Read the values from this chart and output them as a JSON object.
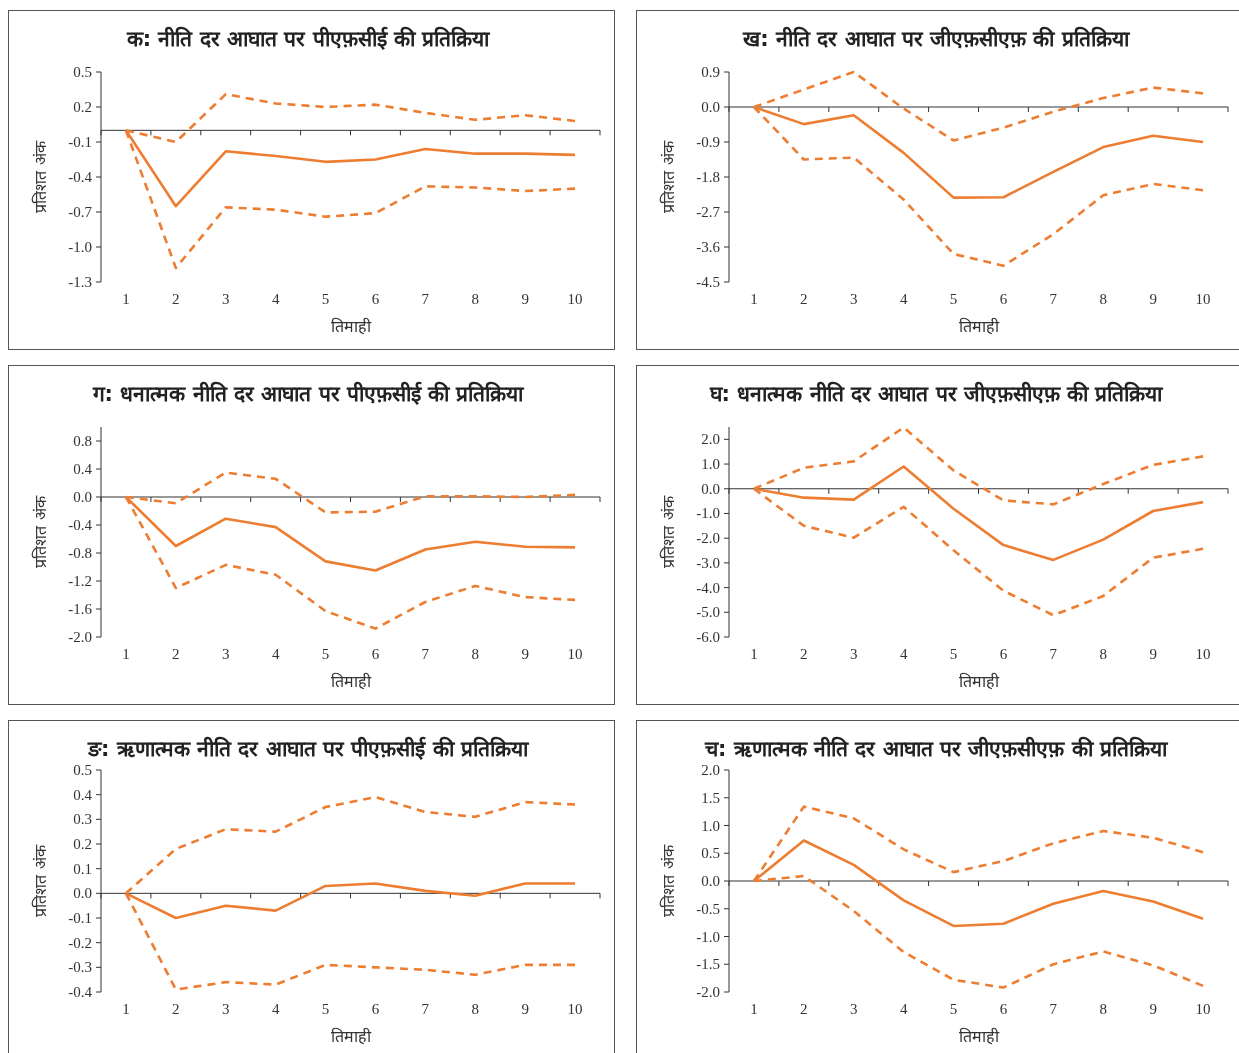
{
  "chart_data": [
    {
      "type": "line",
      "title": "क: नीति  दर आघात पर पीएफ़सीई की प्रतिक्रिया",
      "xlabel": "तिमाही",
      "ylabel": "प्रतिशत अंक",
      "categories": [
        "1",
        "2",
        "3",
        "4",
        "5",
        "6",
        "7",
        "8",
        "9",
        "10"
      ],
      "ylim": [
        -1.3,
        0.5
      ],
      "yticks": [
        0.5,
        0.2,
        -0.1,
        -0.4,
        -0.7,
        {
          "value": -1.0,
          "label": "-1.0"
        },
        -1.3
      ],
      "series": [
        {
          "color": "#ed7d31",
          "line_style": "solid",
          "values": [
            0,
            -0.65,
            -0.18,
            -0.22,
            -0.27,
            -0.25,
            -0.16,
            -0.2,
            -0.2,
            -0.21
          ]
        },
        {
          "color": "#ed7d31",
          "line_style": "dashed",
          "values": [
            0,
            -0.1,
            0.31,
            0.23,
            0.2,
            0.22,
            0.15,
            0.09,
            0.13,
            0.08
          ]
        },
        {
          "color": "#ed7d31",
          "line_style": "dashed",
          "values": [
            0,
            -1.18,
            -0.66,
            -0.68,
            -0.74,
            -0.71,
            -0.48,
            -0.49,
            -0.52,
            -0.5
          ]
        }
      ]
    },
    {
      "type": "line",
      "title": "ख: नीति  दर आघात पर जीएफ़सीएफ़ की प्रतिक्रिया",
      "xlabel": "तिमाही",
      "ylabel": "प्रतिशत अंक",
      "categories": [
        "1",
        "2",
        "3",
        "4",
        "5",
        "6",
        "7",
        "8",
        "9",
        "10"
      ],
      "ylim": [
        -4.5,
        0.9
      ],
      "yticks": [
        0.9,
        {
          "value": 0,
          "label": "0.0"
        },
        -0.9,
        -1.8,
        -2.7,
        -3.6,
        -4.5
      ],
      "series": [
        {
          "color": "#ed7d31",
          "line_style": "solid",
          "values": [
            0,
            -0.44,
            -0.21,
            -1.18,
            -2.33,
            -2.32,
            -1.67,
            -1.03,
            -0.74,
            -0.9
          ]
        },
        {
          "color": "#ed7d31",
          "line_style": "dashed",
          "values": [
            0,
            0.45,
            0.9,
            -0.04,
            -0.86,
            -0.53,
            -0.12,
            0.23,
            0.5,
            0.35
          ]
        },
        {
          "color": "#ed7d31",
          "line_style": "dashed",
          "values": [
            0,
            -1.35,
            -1.3,
            -2.38,
            -3.78,
            -4.08,
            -3.27,
            -2.27,
            -1.98,
            -2.14
          ]
        }
      ]
    },
    {
      "type": "line",
      "title": "ग: धनात्मक नीति  दर आघात पर पीएफ़सीई की प्रतिक्रिया",
      "xlabel": "तिमाही",
      "ylabel": "प्रतिशत अंक",
      "categories": [
        "1",
        "2",
        "3",
        "4",
        "5",
        "6",
        "7",
        "8",
        "9",
        "10"
      ],
      "ylim": [
        -2.0,
        1.0
      ],
      "yticks": [
        0.8,
        0.4,
        {
          "value": 0,
          "label": "0.0"
        },
        -0.4,
        -0.8,
        -1.2,
        -1.6,
        {
          "value": -2.0,
          "label": "-2.0"
        }
      ],
      "series": [
        {
          "color": "#ed7d31",
          "line_style": "solid",
          "values": [
            0,
            -0.7,
            -0.31,
            -0.43,
            -0.92,
            -1.05,
            -0.75,
            -0.64,
            -0.71,
            -0.72
          ]
        },
        {
          "color": "#ed7d31",
          "line_style": "dashed",
          "values": [
            0,
            -0.09,
            0.35,
            0.26,
            -0.22,
            -0.21,
            0.01,
            0.01,
            0.0,
            0.03
          ]
        },
        {
          "color": "#ed7d31",
          "line_style": "dashed",
          "values": [
            0,
            -1.3,
            -0.97,
            -1.11,
            -1.63,
            -1.88,
            -1.5,
            -1.27,
            -1.43,
            -1.47
          ]
        }
      ]
    },
    {
      "type": "line",
      "title": "घ: धनात्मक नीति  दर आघात पर जीएफ़सीएफ़ की प्रतिक्रिया",
      "xlabel": "तिमाही",
      "ylabel": "प्रतिशत अंक",
      "categories": [
        "1",
        "2",
        "3",
        "4",
        "5",
        "6",
        "7",
        "8",
        "9",
        "10"
      ],
      "ylim": [
        -6.0,
        2.5
      ],
      "yticks": [
        {
          "value": 2.0,
          "label": "2.0"
        },
        {
          "value": 1.0,
          "label": "1.0"
        },
        {
          "value": 0,
          "label": "0.0"
        },
        {
          "value": -1.0,
          "label": "-1.0"
        },
        {
          "value": -2.0,
          "label": "-2.0"
        },
        {
          "value": -3.0,
          "label": "-3.0"
        },
        {
          "value": -4.0,
          "label": "-4.0"
        },
        {
          "value": -5.0,
          "label": "-5.0"
        },
        {
          "value": -6.0,
          "label": "-6.0"
        }
      ],
      "series": [
        {
          "color": "#ed7d31",
          "line_style": "solid",
          "values": [
            0,
            -0.36,
            -0.44,
            0.9,
            -0.81,
            -2.28,
            -2.88,
            -2.06,
            -0.9,
            -0.54
          ]
        },
        {
          "color": "#ed7d31",
          "line_style": "dashed",
          "values": [
            0,
            0.85,
            1.11,
            2.48,
            0.74,
            -0.47,
            -0.63,
            0.19,
            0.97,
            1.31
          ]
        },
        {
          "color": "#ed7d31",
          "line_style": "dashed",
          "values": [
            0,
            -1.5,
            -1.98,
            -0.73,
            -2.49,
            -4.13,
            -5.12,
            -4.34,
            -2.79,
            -2.43
          ]
        }
      ]
    },
    {
      "type": "line",
      "title": "ङ: ऋणात्मक  नीति  दर आघात पर पीएफ़सीई की प्रतिक्रिया",
      "xlabel": "तिमाही",
      "ylabel": "प्रतिशत अंक",
      "categories": [
        "1",
        "2",
        "3",
        "4",
        "5",
        "6",
        "7",
        "8",
        "9",
        "10"
      ],
      "ylim": [
        -0.4,
        0.5
      ],
      "yticks": [
        0.5,
        0.4,
        0.3,
        0.2,
        0.1,
        {
          "value": 0,
          "label": "0.0"
        },
        -0.1,
        -0.2,
        -0.3,
        -0.4
      ],
      "series": [
        {
          "color": "#ed7d31",
          "line_style": "solid",
          "values": [
            0,
            -0.1,
            -0.05,
            -0.07,
            0.03,
            0.04,
            0.01,
            -0.01,
            0.04,
            0.04
          ]
        },
        {
          "color": "#ed7d31",
          "line_style": "dashed",
          "values": [
            0,
            0.18,
            0.26,
            0.25,
            0.35,
            0.39,
            0.33,
            0.31,
            0.37,
            0.36
          ]
        },
        {
          "color": "#ed7d31",
          "line_style": "dashed",
          "values": [
            0,
            -0.39,
            -0.36,
            -0.37,
            -0.29,
            -0.3,
            -0.31,
            -0.33,
            -0.29,
            -0.29
          ]
        }
      ]
    },
    {
      "type": "line",
      "title": "च: ऋणात्मक  नीति  दर आघात पर जीएफ़सीएफ़ की प्रतिक्रिया",
      "xlabel": "तिमाही",
      "ylabel": "प्रतिशत अंक",
      "categories": [
        "1",
        "2",
        "3",
        "4",
        "5",
        "6",
        "7",
        "8",
        "9",
        "10"
      ],
      "ylim": [
        -2.0,
        2.0
      ],
      "yticks": [
        {
          "value": 2.0,
          "label": "2.0"
        },
        1.5,
        {
          "value": 1.0,
          "label": "1.0"
        },
        0.5,
        {
          "value": 0,
          "label": "0.0"
        },
        -0.5,
        {
          "value": -1.0,
          "label": "-1.0"
        },
        -1.5,
        {
          "value": -2.0,
          "label": "-2.0"
        }
      ],
      "series": [
        {
          "color": "#ed7d31",
          "line_style": "solid",
          "values": [
            0,
            0.73,
            0.29,
            -0.35,
            -0.81,
            -0.77,
            -0.41,
            -0.18,
            -0.37,
            -0.68
          ]
        },
        {
          "color": "#ed7d31",
          "line_style": "dashed",
          "values": [
            0,
            1.34,
            1.13,
            0.57,
            0.16,
            0.36,
            0.68,
            0.9,
            0.78,
            0.52
          ]
        },
        {
          "color": "#ed7d31",
          "line_style": "dashed",
          "values": [
            0,
            0.09,
            -0.54,
            -1.28,
            -1.78,
            -1.92,
            -1.5,
            -1.27,
            -1.52,
            -1.89
          ]
        }
      ]
    }
  ]
}
